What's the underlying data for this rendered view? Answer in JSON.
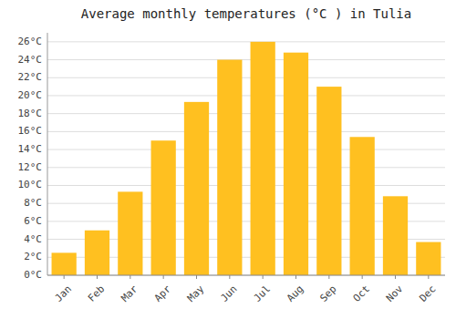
{
  "chart_data": {
    "type": "bar",
    "title": "Average monthly temperatures (°C ) in Tulia",
    "categories": [
      "Jan",
      "Feb",
      "Mar",
      "Apr",
      "May",
      "Jun",
      "Jul",
      "Aug",
      "Sep",
      "Oct",
      "Nov",
      "Dec"
    ],
    "values": [
      2.5,
      5.0,
      9.3,
      15.0,
      19.3,
      24.0,
      26.0,
      24.8,
      21.0,
      15.4,
      8.8,
      3.7
    ],
    "color": "#FFC020",
    "ylim": [
      0,
      27
    ],
    "yticks": [
      {
        "value": 0,
        "label": "0°C"
      },
      {
        "value": 2,
        "label": "2°C"
      },
      {
        "value": 4,
        "label": "4°C"
      },
      {
        "value": 6,
        "label": "6°C"
      },
      {
        "value": 8,
        "label": "8°C"
      },
      {
        "value": 10,
        "label": "10°C"
      },
      {
        "value": 12,
        "label": "12°C"
      },
      {
        "value": 14,
        "label": "14°C"
      },
      {
        "value": 16,
        "label": "16°C"
      },
      {
        "value": 18,
        "label": "18°C"
      },
      {
        "value": 20,
        "label": "20°C"
      },
      {
        "value": 22,
        "label": "22°C"
      },
      {
        "value": 24,
        "label": "24°C"
      },
      {
        "value": 26,
        "label": "26°C"
      }
    ],
    "grid": true
  }
}
